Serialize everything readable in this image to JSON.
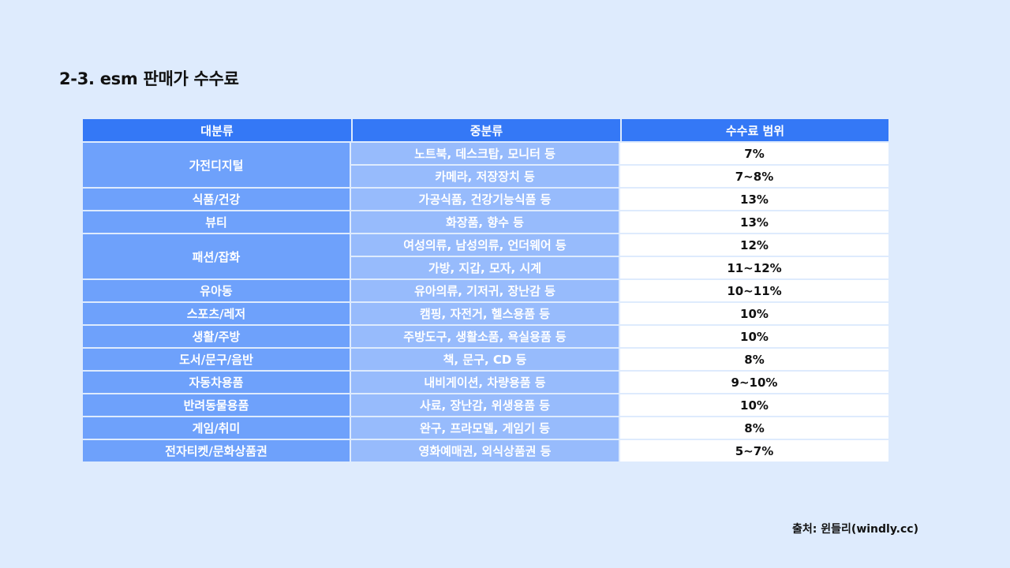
{
  "title": "2-3. esm 판매가 수수료",
  "table": {
    "headers": [
      "대분류",
      "중분류",
      "수수료 범위"
    ],
    "groups": [
      {
        "major": "가전디지털",
        "rows": [
          {
            "minor": "노트북, 데스크탑, 모니터 등",
            "rate": "7%"
          },
          {
            "minor": "카메라, 저장장치 등",
            "rate": "7~8%"
          }
        ]
      },
      {
        "major": "식품/건강",
        "rows": [
          {
            "minor": "가공식품, 건강기능식품 등",
            "rate": "13%"
          }
        ]
      },
      {
        "major": "뷰티",
        "rows": [
          {
            "minor": "화장품, 향수 등",
            "rate": "13%"
          }
        ]
      },
      {
        "major": "패션/잡화",
        "rows": [
          {
            "minor": "여성의류, 남성의류, 언더웨어 등",
            "rate": "12%"
          },
          {
            "minor": "가방, 지갑, 모자, 시계",
            "rate": "11~12%"
          }
        ]
      },
      {
        "major": "유아동",
        "rows": [
          {
            "minor": "유아의류, 기저귀, 장난감 등",
            "rate": "10~11%"
          }
        ]
      },
      {
        "major": "스포츠/레저",
        "rows": [
          {
            "minor": "캠핑, 자전거, 헬스용품 등",
            "rate": "10%"
          }
        ]
      },
      {
        "major": "생활/주방",
        "rows": [
          {
            "minor": "주방도구, 생활소품, 욕실용품 등",
            "rate": "10%"
          }
        ]
      },
      {
        "major": "도서/문구/음반",
        "rows": [
          {
            "minor": "책, 문구, CD 등",
            "rate": "8%"
          }
        ]
      },
      {
        "major": "자동차용품",
        "rows": [
          {
            "minor": "내비게이션, 차량용품 등",
            "rate": "9~10%"
          }
        ]
      },
      {
        "major": "반려동물용품",
        "rows": [
          {
            "minor": "사료, 장난감, 위생용품 등",
            "rate": "10%"
          }
        ]
      },
      {
        "major": "게임/취미",
        "rows": [
          {
            "minor": "완구, 프라모델, 게임기 등",
            "rate": "8%"
          }
        ]
      },
      {
        "major": "전자티켓/문화상품권",
        "rows": [
          {
            "minor": "영화예매권, 외식상품권 등",
            "rate": "5~7%"
          }
        ]
      }
    ]
  },
  "source": "출처: 윈들리(windly.cc)"
}
